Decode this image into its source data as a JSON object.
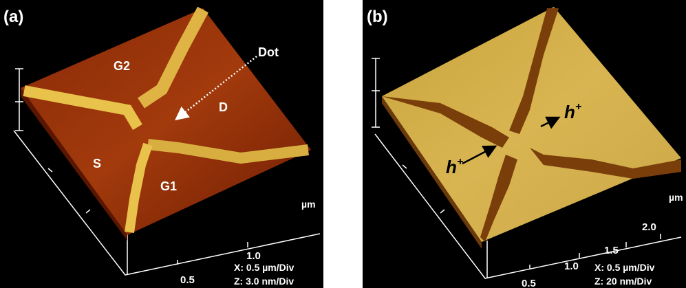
{
  "panels": [
    {
      "label": "(a)",
      "annotations": [
        "G2",
        "Dot",
        "D",
        "S",
        "G1"
      ],
      "unit": "µm",
      "ticks": [
        "1.0",
        "0.5"
      ],
      "scale": [
        "X: 0.5 µm/Div",
        "Z: 3.0 nm/Div"
      ]
    },
    {
      "label": "(b)",
      "carriers": [
        {
          "base": "h",
          "sup": "+"
        },
        {
          "base": "h",
          "sup": "+"
        }
      ],
      "unit": "µm",
      "ticks": [
        "2.0",
        "1.5",
        "1.0",
        "0.5"
      ],
      "scale": [
        "X: 0.5 µm/Div",
        "Z: 20 nm/Div"
      ]
    }
  ]
}
